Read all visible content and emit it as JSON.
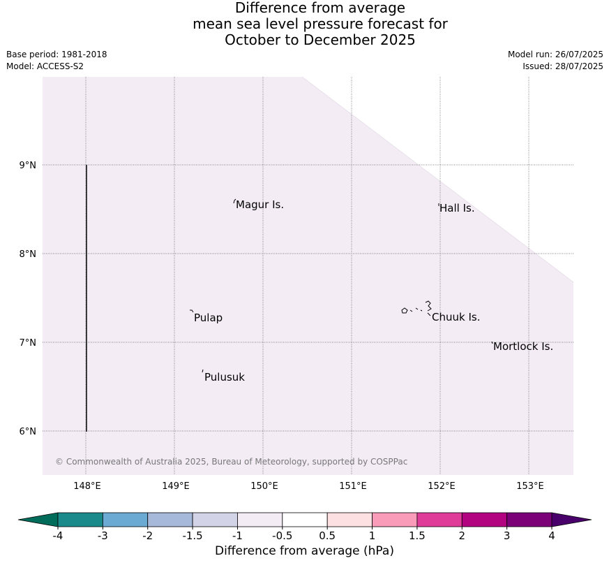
{
  "header": {
    "title_line1": "Difference from average",
    "title_line2": "mean sea level pressure forecast for",
    "title_line3": "October to December 2025",
    "base_period": "Base period: 1981-2018",
    "model": "Model: ACCESS-S2",
    "model_run": "Model run: 26/07/2025",
    "issued": "Issued: 28/07/2025"
  },
  "map": {
    "lat_labels": [
      "9°N",
      "8°N",
      "7°N",
      "6°N"
    ],
    "lon_labels": [
      "148°E",
      "149°E",
      "150°E",
      "151°E",
      "152°E",
      "153°E"
    ],
    "places": [
      "Magur Is.",
      "Hall Is.",
      "Pulap",
      "Chuuk Is.",
      "Mortlock Is.",
      "Pulusuk"
    ],
    "copyright": "© Commonwealth of Australia 2025, Bureau of Meteorology, supported by COSPPac",
    "fill_color": "#f3ecf5",
    "fill_category": "-1 to -0.5"
  },
  "colorbar": {
    "ticks": [
      "-4",
      "-3",
      "-2",
      "-1.5",
      "-1",
      "-0.5",
      "0.5",
      "1",
      "1.5",
      "2",
      "3",
      "4"
    ],
    "colors": [
      "#1a8a8a",
      "#6aaad3",
      "#a6b9da",
      "#d2d3e6",
      "#f3ecf5",
      "#ffffff",
      "#fde0e1",
      "#f89cb9",
      "#df3c99",
      "#b20480",
      "#7a0177"
    ],
    "extend_low_color": "#016c59",
    "extend_high_color": "#49006a",
    "title": "Difference from average (hPa)"
  }
}
